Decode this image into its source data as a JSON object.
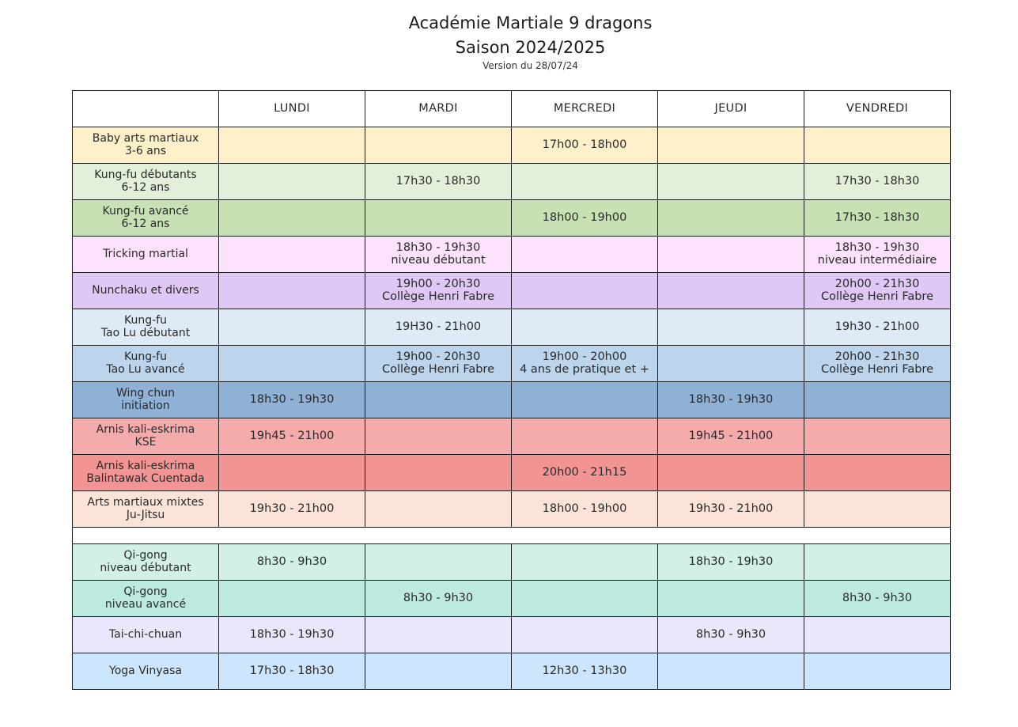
{
  "header": {
    "title_line1": "Académie Martiale 9 dragons",
    "title_line2": "Saison 2024/2025",
    "version": "Version du 28/07/24"
  },
  "days": [
    "LUNDI",
    "MARDI",
    "MERCREDI",
    "JEUDI",
    "VENDREDI"
  ],
  "rows": [
    {
      "label": "Baby arts martiaux\n3-6 ans",
      "color": "#fef0c9",
      "cells": [
        "",
        "",
        "17h00 - 18h00",
        "",
        ""
      ]
    },
    {
      "label": "Kung-fu débutants\n6-12 ans",
      "color": "#e3efd8",
      "cells": [
        "",
        "17h30 - 18h30",
        "",
        "",
        "17h30 - 18h30"
      ]
    },
    {
      "label": "Kung-fu avancé\n6-12 ans",
      "color": "#c7e1b4",
      "cells": [
        "",
        "",
        "18h00 - 19h00",
        "",
        "17h30 - 18h30"
      ]
    },
    {
      "label": "Tricking martial",
      "color": "#fde2fd",
      "cells": [
        "",
        "18h30 - 19h30\nniveau débutant",
        "",
        "",
        "18h30 - 19h30\nniveau intermédiaire"
      ]
    },
    {
      "label": "Nunchaku et divers",
      "color": "#dfc8f6",
      "cells": [
        "",
        "19h00 - 20h30\nCollège Henri Fabre",
        "",
        "",
        "20h00 - 21h30\nCollège Henri Fabre"
      ]
    },
    {
      "label": "Kung-fu\nTao Lu débutant",
      "color": "#deeaf5",
      "cells": [
        "",
        "19H30 - 21h00",
        "",
        "",
        "19h30 - 21h00"
      ]
    },
    {
      "label": "Kung-fu\nTao Lu avancé",
      "color": "#bcd5ed",
      "cells": [
        "",
        "19h00 - 20h30\nCollège Henri Fabre",
        "19h00 - 20h00\n4 ans de pratique et +",
        "",
        "20h00 - 21h30\nCollège Henri Fabre"
      ]
    },
    {
      "label": "Wing chun\ninitiation",
      "color": "#8fb1d6",
      "cells": [
        "18h30 - 19h30",
        "",
        "",
        "18h30 - 19h30",
        ""
      ]
    },
    {
      "label": "Arnis kali-eskrima\nKSE",
      "color": "#f4abab",
      "cells": [
        "19h45 - 21h00",
        "",
        "",
        "19h45 - 21h00",
        ""
      ]
    },
    {
      "label": "Arnis kali-eskrima\nBalintawak Cuentada",
      "color": "#f29494",
      "cells": [
        "",
        "",
        "20h00 - 21h15",
        "",
        ""
      ]
    },
    {
      "label": "Arts martiaux mixtes\nJu-Jitsu",
      "color": "#fbe4d7",
      "cells": [
        "19h30 - 21h00",
        "",
        "18h00 - 19h00",
        "19h30 - 21h00",
        ""
      ]
    }
  ],
  "rows_after_gap": [
    {
      "label": "Qi-gong\nniveau débutant",
      "color": "#d2f0e8",
      "cells": [
        "8h30 - 9h30",
        "",
        "",
        "18h30 - 19h30",
        ""
      ]
    },
    {
      "label": "Qi-gong\nniveau avancé",
      "color": "#bdeae0",
      "cells": [
        "",
        "8h30 - 9h30",
        "",
        "",
        "8h30 - 9h30"
      ]
    },
    {
      "label": "Tai-chi-chuan",
      "color": "#eae6fc",
      "cells": [
        "18h30 - 19h30",
        "",
        "",
        "8h30 - 9h30",
        ""
      ]
    },
    {
      "label": "Yoga Vinyasa",
      "color": "#cce7fd",
      "cells": [
        "17h30 - 18h30",
        "",
        "12h30 - 13h30",
        "",
        ""
      ]
    }
  ]
}
